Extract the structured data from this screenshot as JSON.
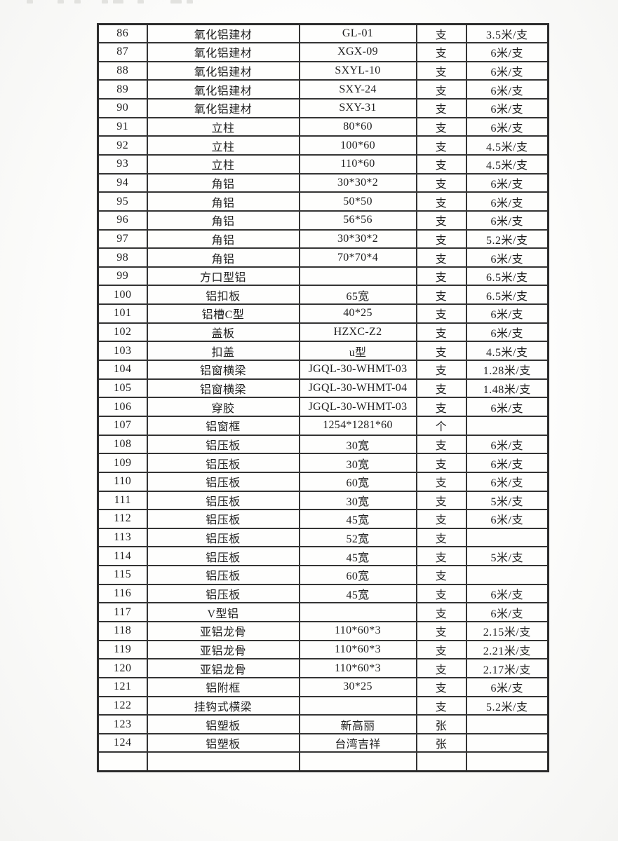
{
  "table": {
    "rows": [
      [
        "86",
        "氧化铝建材",
        "GL-01",
        "支",
        "3.5米/支"
      ],
      [
        "87",
        "氧化铝建材",
        "XGX-09",
        "支",
        "6米/支"
      ],
      [
        "88",
        "氧化铝建材",
        "SXYL-10",
        "支",
        "6米/支"
      ],
      [
        "89",
        "氧化铝建材",
        "SXY-24",
        "支",
        "6米/支"
      ],
      [
        "90",
        "氧化铝建材",
        "SXY-31",
        "支",
        "6米/支"
      ],
      [
        "91",
        "立柱",
        "80*60",
        "支",
        "6米/支"
      ],
      [
        "92",
        "立柱",
        "100*60",
        "支",
        "4.5米/支"
      ],
      [
        "93",
        "立柱",
        "110*60",
        "支",
        "4.5米/支"
      ],
      [
        "94",
        "角铝",
        "30*30*2",
        "支",
        "6米/支"
      ],
      [
        "95",
        "角铝",
        "50*50",
        "支",
        "6米/支"
      ],
      [
        "96",
        "角铝",
        "56*56",
        "支",
        "6米/支"
      ],
      [
        "97",
        "角铝",
        "30*30*2",
        "支",
        "5.2米/支"
      ],
      [
        "98",
        "角铝",
        "70*70*4",
        "支",
        "6米/支"
      ],
      [
        "99",
        "方口型铝",
        "",
        "支",
        "6.5米/支"
      ],
      [
        "100",
        "铝扣板",
        "65宽",
        "支",
        "6.5米/支"
      ],
      [
        "101",
        "铝槽C型",
        "40*25",
        "支",
        "6米/支"
      ],
      [
        "102",
        "盖板",
        "HZXC-Z2",
        "支",
        "6米/支"
      ],
      [
        "103",
        "扣盖",
        "u型",
        "支",
        "4.5米/支"
      ],
      [
        "104",
        "铝窗横梁",
        "JGQL-30-WHMT-03",
        "支",
        "1.28米/支"
      ],
      [
        "105",
        "铝窗横梁",
        "JGQL-30-WHMT-04",
        "支",
        "1.48米/支"
      ],
      [
        "106",
        "穿胶",
        "JGQL-30-WHMT-03",
        "支",
        "6米/支"
      ],
      [
        "107",
        "铝窗框",
        "1254*1281*60",
        "个",
        ""
      ],
      [
        "108",
        "铝压板",
        "30宽",
        "支",
        "6米/支"
      ],
      [
        "109",
        "铝压板",
        "30宽",
        "支",
        "6米/支"
      ],
      [
        "110",
        "铝压板",
        "60宽",
        "支",
        "6米/支"
      ],
      [
        "111",
        "铝压板",
        "30宽",
        "支",
        "5米/支"
      ],
      [
        "112",
        "铝压板",
        "45宽",
        "支",
        "6米/支"
      ],
      [
        "113",
        "铝压板",
        "52宽",
        "支",
        ""
      ],
      [
        "114",
        "铝压板",
        "45宽",
        "支",
        "5米/支"
      ],
      [
        "115",
        "铝压板",
        "60宽",
        "支",
        ""
      ],
      [
        "116",
        "铝压板",
        "45宽",
        "支",
        "6米/支"
      ],
      [
        "117",
        "V型铝",
        "",
        "支",
        "6米/支"
      ],
      [
        "118",
        "亚铝龙骨",
        "110*60*3",
        "支",
        "2.15米/支"
      ],
      [
        "119",
        "亚铝龙骨",
        "110*60*3",
        "支",
        "2.21米/支"
      ],
      [
        "120",
        "亚铝龙骨",
        "110*60*3",
        "支",
        "2.17米/支"
      ],
      [
        "121",
        "铝附框",
        "30*25",
        "支",
        "6米/支"
      ],
      [
        "122",
        "挂钩式横梁",
        "",
        "支",
        "5.2米/支"
      ],
      [
        "123",
        "铝塑板",
        "新高丽",
        "张",
        ""
      ],
      [
        "124",
        "铝塑板",
        "台湾吉祥",
        "张",
        ""
      ],
      [
        "",
        "",
        "",
        "",
        ""
      ]
    ]
  }
}
